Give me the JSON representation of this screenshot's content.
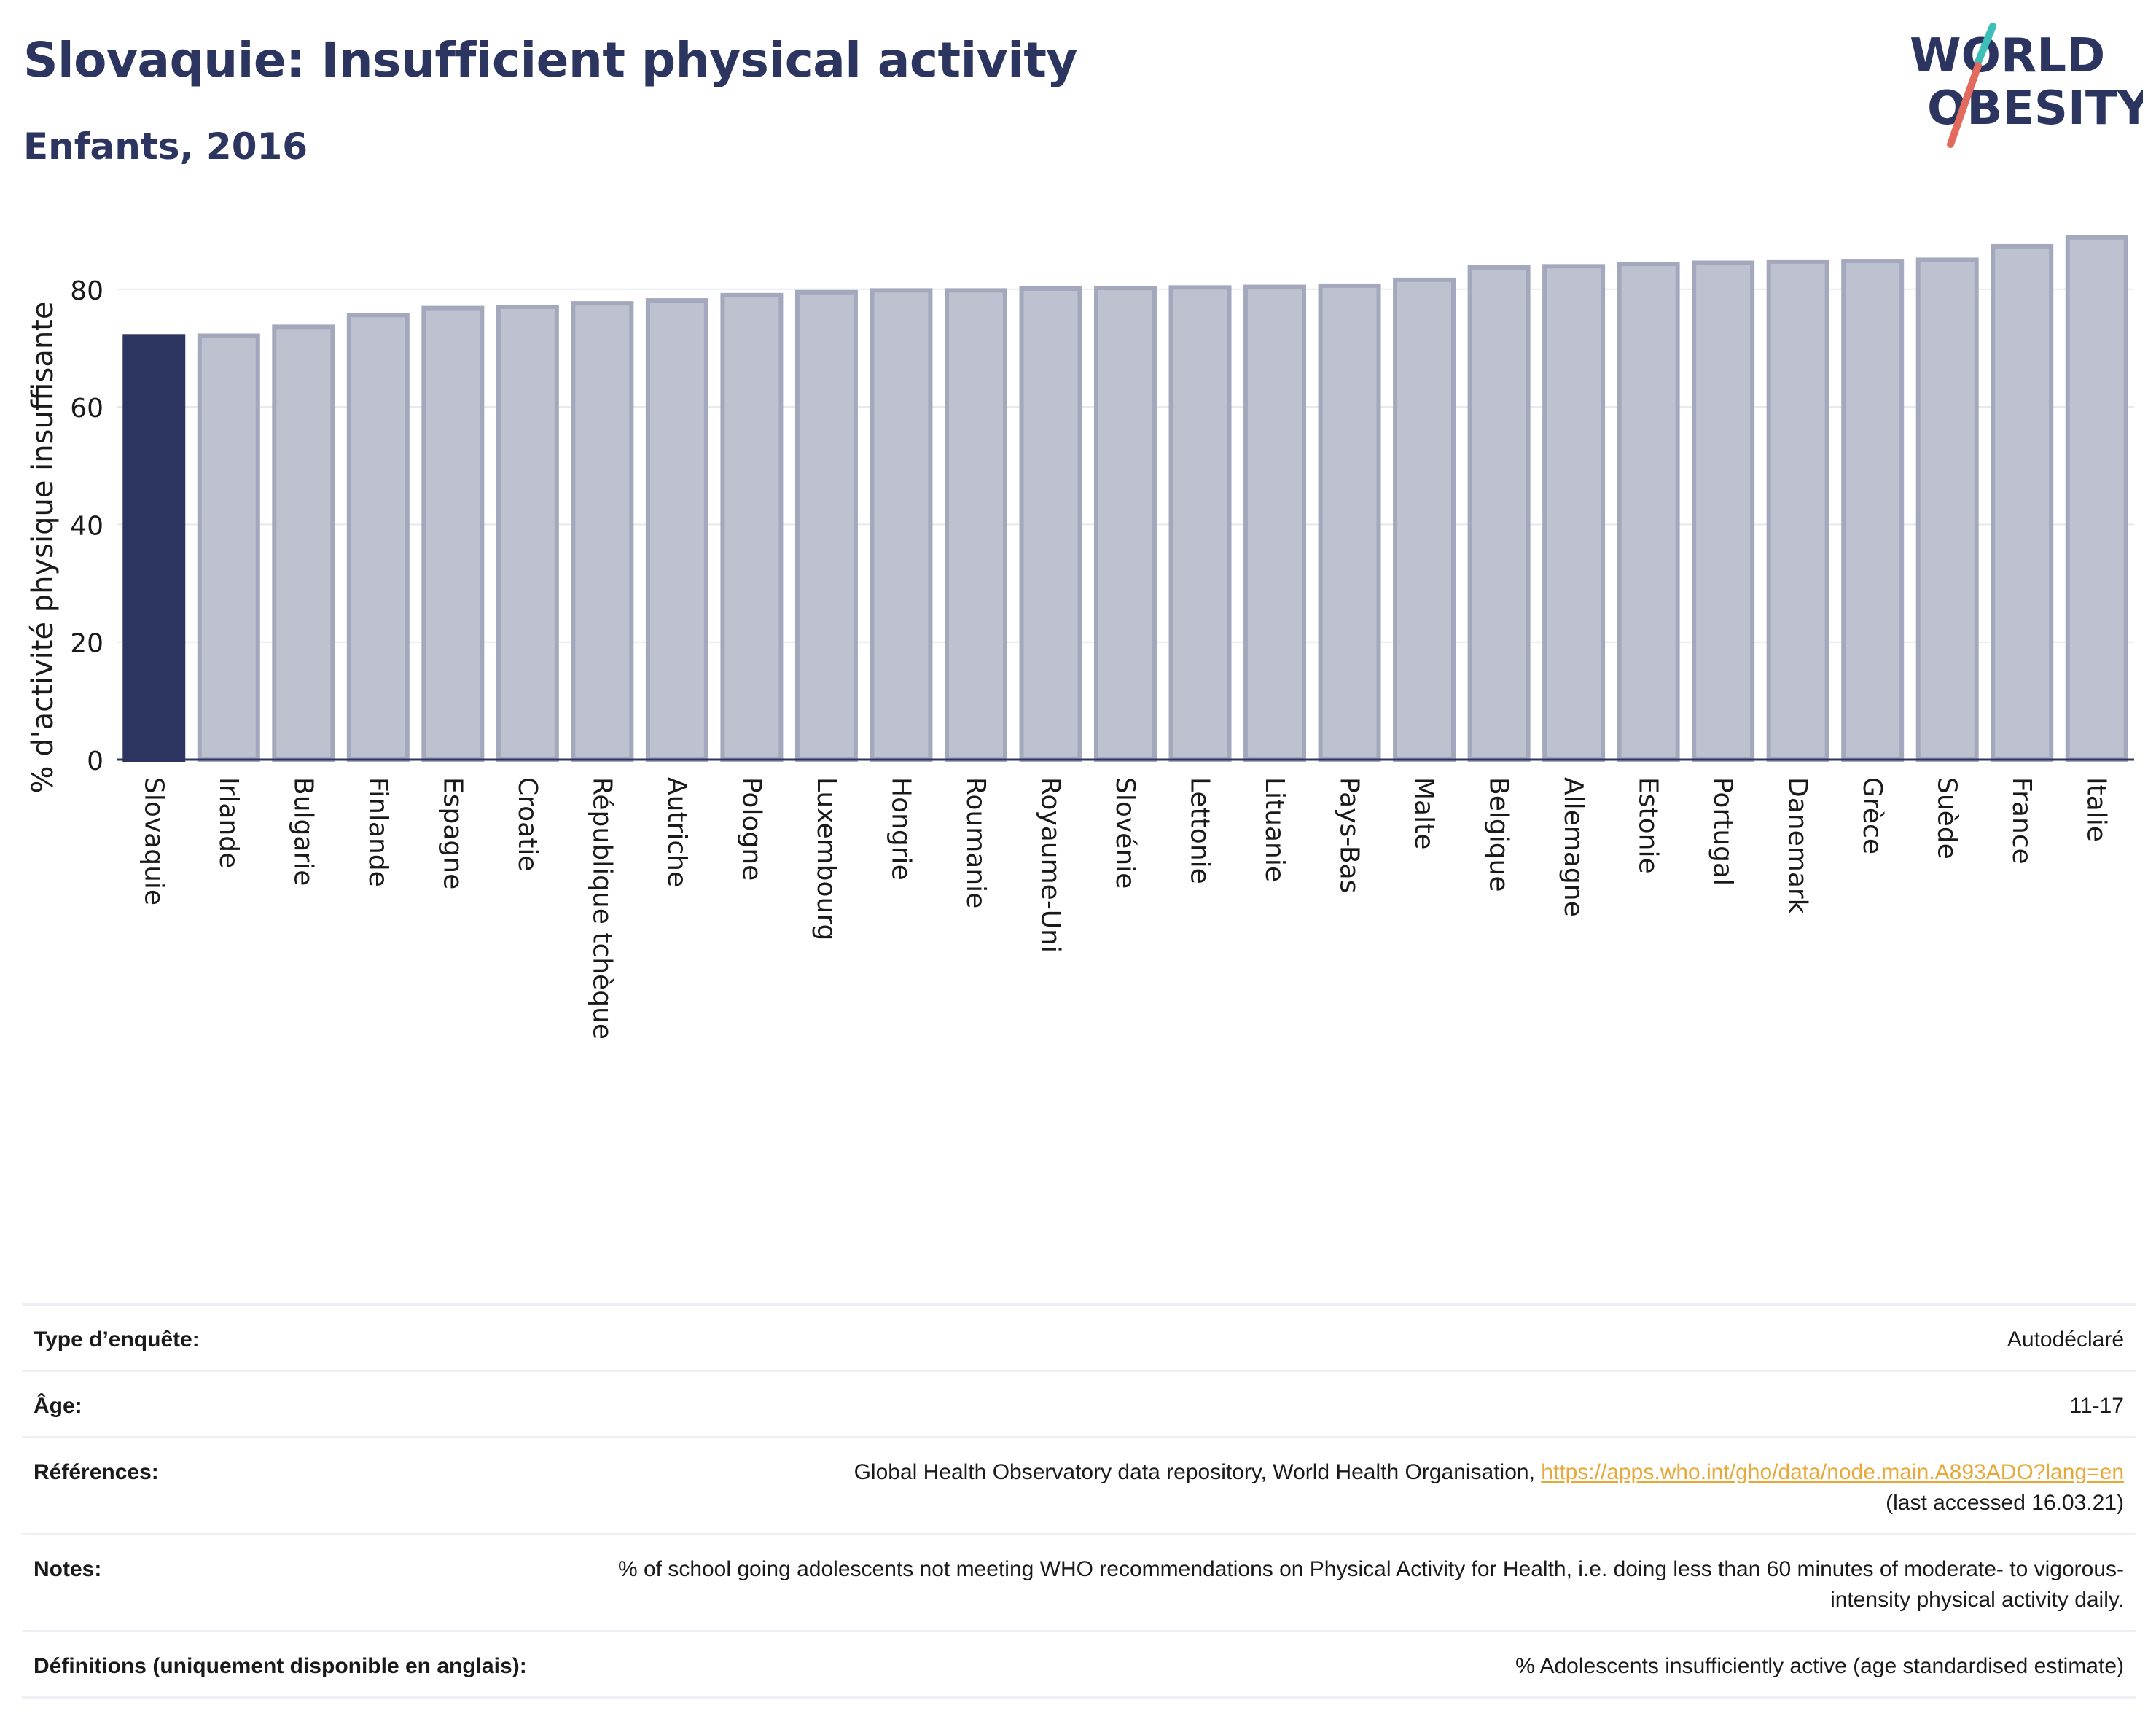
{
  "header": {
    "title": "Slovaquie: Insufficient physical activity",
    "subtitle": "Enfants, 2016"
  },
  "logo": {
    "line1": "WORLD",
    "line2": "OBESITY"
  },
  "chart_data": {
    "type": "bar",
    "ylabel": "% d'activité physique insuffisante",
    "ylim": [
      0,
      92
    ],
    "yticks": [
      0,
      20,
      40,
      60,
      80
    ],
    "grid": true,
    "highlight_category": "Slovaquie",
    "categories": [
      "Slovaquie",
      "Irlande",
      "Bulgarie",
      "Finlande",
      "Espagne",
      "Croatie",
      "République tchèque",
      "Autriche",
      "Pologne",
      "Luxembourg",
      "Hongrie",
      "Roumanie",
      "Royaume-Uni",
      "Slovénie",
      "Lettonie",
      "Lituanie",
      "Pays-Bas",
      "Malte",
      "Belgique",
      "Allemagne",
      "Estonie",
      "Portugal",
      "Danemark",
      "Grèce",
      "Suède",
      "France",
      "Italie"
    ],
    "values": [
      72.0,
      72.1,
      73.6,
      75.6,
      76.8,
      77.0,
      77.6,
      78.1,
      79.0,
      79.5,
      79.8,
      79.8,
      80.1,
      80.2,
      80.3,
      80.4,
      80.6,
      81.6,
      83.7,
      83.9,
      84.3,
      84.5,
      84.7,
      84.8,
      85.0,
      87.3,
      88.8
    ],
    "colors": {
      "highlight": "#2b3560",
      "bar_fill": "#bec2d0",
      "bar_stroke": "#a3a8bd",
      "grid": "#e6e8ef",
      "axis": "#2b3560"
    }
  },
  "info": {
    "survey_label": "Type d’enquête:",
    "survey_value": "Autodéclaré",
    "age_label": "Âge:",
    "age_value": "11-17",
    "refs_label": "Références:",
    "refs_text": "Global Health Observatory data repository, World Health Organisation, ",
    "refs_link": "https://apps.who.int/gho/data/node.main.A893ADO?lang=en",
    "refs_accessed": "(last accessed 16.03.21)",
    "notes_label": "Notes:",
    "notes_value": "% of school going adolescents not meeting WHO recommendations on Physical Activity for Health, i.e. doing less than 60 minutes of moderate- to vigorous-intensity physical activity daily.",
    "defs_label": "Définitions (uniquement disponible en anglais):",
    "defs_value": "% Adolescents insufficiently active (age standardised estimate)"
  }
}
